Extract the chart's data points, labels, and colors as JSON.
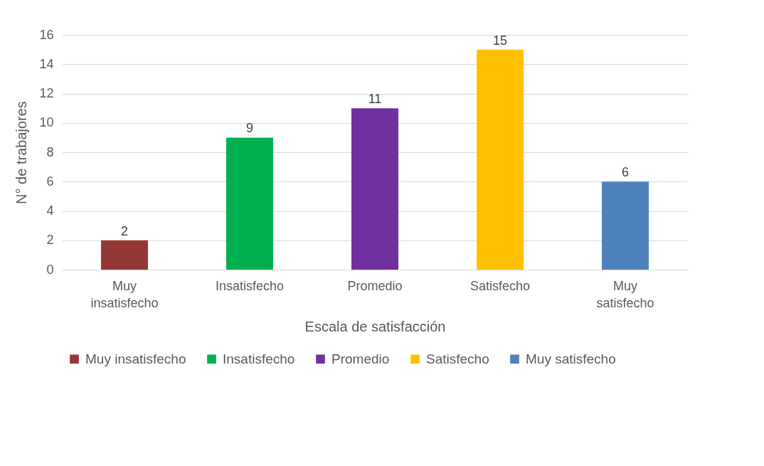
{
  "chart_data": {
    "type": "bar",
    "xlabel": "Escala de satisfacción",
    "ylabel": "N° de trabajores",
    "categories": [
      "Muy insatisfecho",
      "Insatisfecho",
      "Promedio",
      "Satisfecho",
      "Muy satisfecho"
    ],
    "series": [
      {
        "name": "Muy insatisfecho",
        "color": "#953735",
        "values": [
          2,
          null,
          null,
          null,
          null
        ]
      },
      {
        "name": "Insatisfecho",
        "color": "#00b050",
        "values": [
          null,
          9,
          null,
          null,
          null
        ]
      },
      {
        "name": "Promedio",
        "color": "#7030a0",
        "values": [
          null,
          null,
          11,
          null,
          null
        ]
      },
      {
        "name": "Satisfecho",
        "color": "#ffc000",
        "values": [
          null,
          null,
          null,
          15,
          null
        ]
      },
      {
        "name": "Muy satisfecho",
        "color": "#4f81bd",
        "values": [
          null,
          null,
          null,
          null,
          6
        ]
      }
    ],
    "ylim": [
      0,
      16
    ],
    "yticks": [
      0,
      2,
      4,
      6,
      8,
      10,
      12,
      14,
      16
    ],
    "grid": "y",
    "data_labels": true,
    "legend": "bottom"
  }
}
